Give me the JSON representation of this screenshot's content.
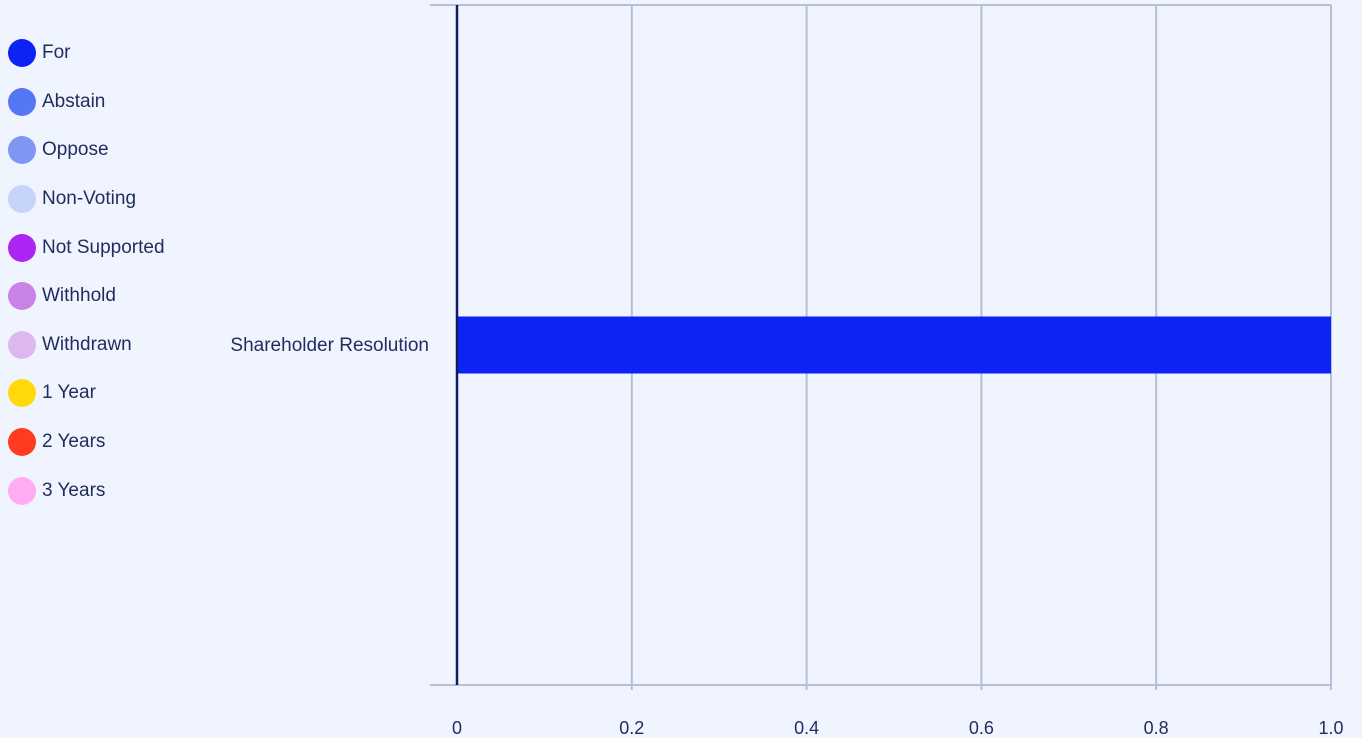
{
  "legend": [
    {
      "label": "For",
      "color": "#0d22f5"
    },
    {
      "label": "Abstain",
      "color": "#5577f4"
    },
    {
      "label": "Oppose",
      "color": "#7f96f2"
    },
    {
      "label": "Non-Voting",
      "color": "#c6d3fa"
    },
    {
      "label": "Not Supported",
      "color": "#ab26f2"
    },
    {
      "label": "Withhold",
      "color": "#c783e6"
    },
    {
      "label": "Withdrawn",
      "color": "#ddb7f0"
    },
    {
      "label": "1 Year",
      "color": "#ffd90a"
    },
    {
      "label": "2 Years",
      "color": "#ff3b22"
    },
    {
      "label": "3 Years",
      "color": "#ffacf4"
    }
  ],
  "chart_data": {
    "type": "bar",
    "orientation": "horizontal",
    "stacked": true,
    "categories": [
      "Shareholder Resolution"
    ],
    "series": [
      {
        "name": "For",
        "values": [
          1.0
        ],
        "color": "#0d22f5"
      },
      {
        "name": "Abstain",
        "values": [
          0
        ],
        "color": "#5577f4"
      },
      {
        "name": "Oppose",
        "values": [
          0
        ],
        "color": "#7f96f2"
      },
      {
        "name": "Non-Voting",
        "values": [
          0
        ],
        "color": "#c6d3fa"
      },
      {
        "name": "Not Supported",
        "values": [
          0
        ],
        "color": "#ab26f2"
      },
      {
        "name": "Withhold",
        "values": [
          0
        ],
        "color": "#c783e6"
      },
      {
        "name": "Withdrawn",
        "values": [
          0
        ],
        "color": "#ddb7f0"
      },
      {
        "name": "1 Year",
        "values": [
          0
        ],
        "color": "#ffd90a"
      },
      {
        "name": "2 Years",
        "values": [
          0
        ],
        "color": "#ff3b22"
      },
      {
        "name": "3 Years",
        "values": [
          0
        ],
        "color": "#ffacf4"
      }
    ],
    "xlim": [
      0,
      1.0
    ],
    "xticks": [
      "0",
      "0.2",
      "0.4",
      "0.6",
      "0.8",
      "1.0"
    ],
    "grid": true,
    "legend_position": "left",
    "title": "",
    "xlabel": "",
    "ylabel": ""
  }
}
